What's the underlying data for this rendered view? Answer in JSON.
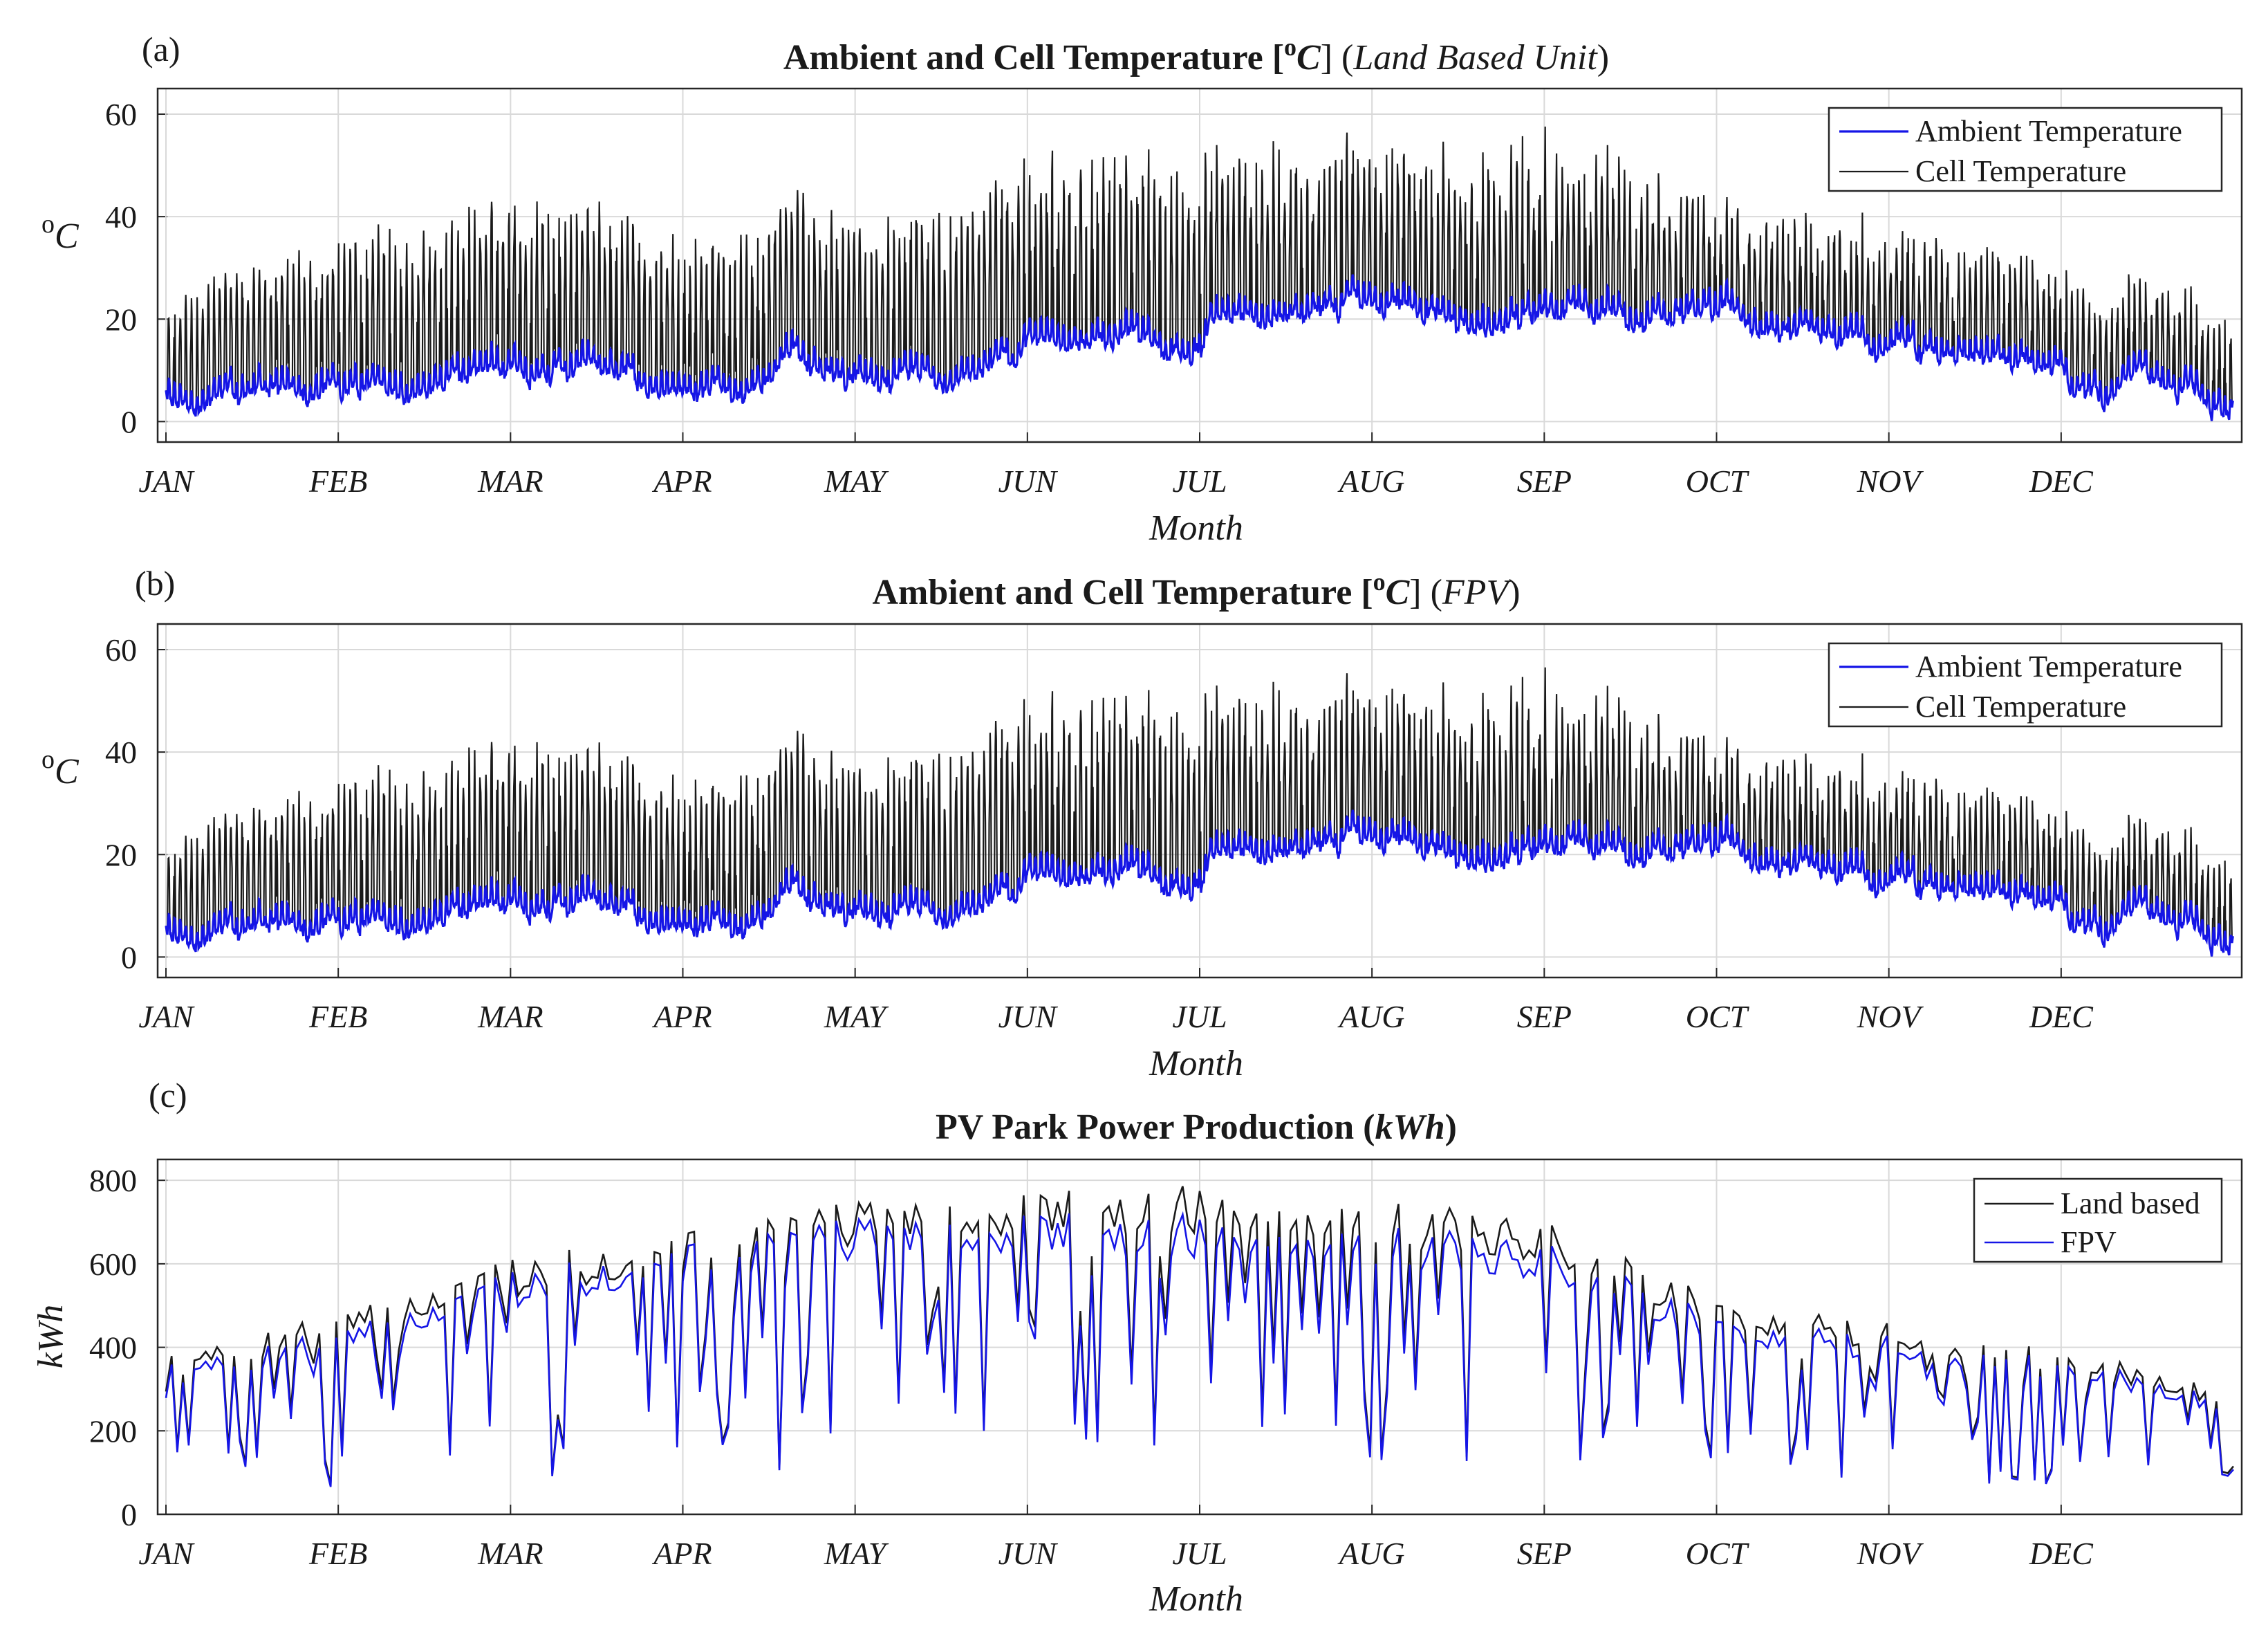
{
  "figure": {
    "panels": [
      "(a)",
      "(b)",
      "(c)"
    ]
  },
  "chart_data": [
    {
      "id": "a",
      "type": "line",
      "label": "(a)",
      "title": {
        "bold": "Ambient and Cell Temperature [",
        "sup": "o",
        "unit": "C",
        "close": "] (",
        "italic": "Land Based Unit",
        "end": ")"
      },
      "xlabel": "Month",
      "ylabel": {
        "sup": "o",
        "unit": "C"
      },
      "categories": [
        "JAN",
        "FEB",
        "MAR",
        "APR",
        "MAY",
        "JUN",
        "JUL",
        "AUG",
        "SEP",
        "OCT",
        "NOV",
        "DEC"
      ],
      "ylim": [
        -4,
        65
      ],
      "yticks": [
        0,
        20,
        40,
        60
      ],
      "grid": true,
      "legend_position": "top-right",
      "monthly_series": [
        {
          "name": "Ambient Temperature",
          "color": "#1515e6",
          "values": [
            8,
            7,
            10,
            8,
            10,
            14,
            19,
            23,
            22,
            22,
            15,
            11,
            6
          ]
        },
        {
          "name": "Cell Temperature",
          "color": "#1a1a1a",
          "peaks": [
            25,
            32,
            40,
            35,
            38,
            46,
            50,
            50,
            52,
            40,
            34,
            28,
            20
          ]
        }
      ]
    },
    {
      "id": "b",
      "type": "line",
      "label": "(b)",
      "title": {
        "bold": "Ambient and Cell Temperature [",
        "sup": "o",
        "unit": "C",
        "close": "] (",
        "italic": "FPV",
        "end": ")"
      },
      "xlabel": "Month",
      "ylabel": {
        "sup": "o",
        "unit": "C"
      },
      "categories": [
        "JAN",
        "FEB",
        "MAR",
        "APR",
        "MAY",
        "JUN",
        "JUL",
        "AUG",
        "SEP",
        "OCT",
        "NOV",
        "DEC"
      ],
      "ylim": [
        -4,
        65
      ],
      "yticks": [
        0,
        20,
        40,
        60
      ],
      "grid": true,
      "legend_position": "top-right",
      "monthly_series": [
        {
          "name": "Ambient Temperature",
          "color": "#1515e6",
          "values": [
            8,
            7,
            10,
            8,
            10,
            14,
            19,
            23,
            22,
            22,
            15,
            11,
            6
          ]
        },
        {
          "name": "Cell Temperature",
          "color": "#1a1a1a",
          "peaks": [
            24,
            31,
            39,
            34,
            37,
            45,
            49,
            49,
            51,
            39,
            33,
            27,
            19
          ]
        }
      ]
    },
    {
      "id": "c",
      "type": "line",
      "label": "(c)",
      "title": {
        "bold": "PV Park Power Production (",
        "italic": "kWh",
        "end": ")"
      },
      "xlabel": "Month",
      "ylabel": {
        "text": "kWh"
      },
      "categories": [
        "JAN",
        "FEB",
        "MAR",
        "APR",
        "MAY",
        "JUN",
        "JUL",
        "AUG",
        "SEP",
        "OCT",
        "NOV",
        "DEC"
      ],
      "ylim": [
        0,
        850
      ],
      "yticks": [
        0,
        200,
        400,
        600,
        800
      ],
      "grid": true,
      "legend_position": "top-right",
      "monthly_series": [
        {
          "name": "Land based",
          "color": "#1a1a1a",
          "peaks": [
            380,
            480,
            610,
            680,
            760,
            780,
            790,
            760,
            700,
            520,
            460,
            400,
            300
          ]
        },
        {
          "name": "FPV",
          "color": "#1515e6",
          "peaks": [
            360,
            440,
            580,
            650,
            720,
            730,
            720,
            700,
            650,
            480,
            430,
            380,
            280
          ]
        }
      ]
    }
  ]
}
